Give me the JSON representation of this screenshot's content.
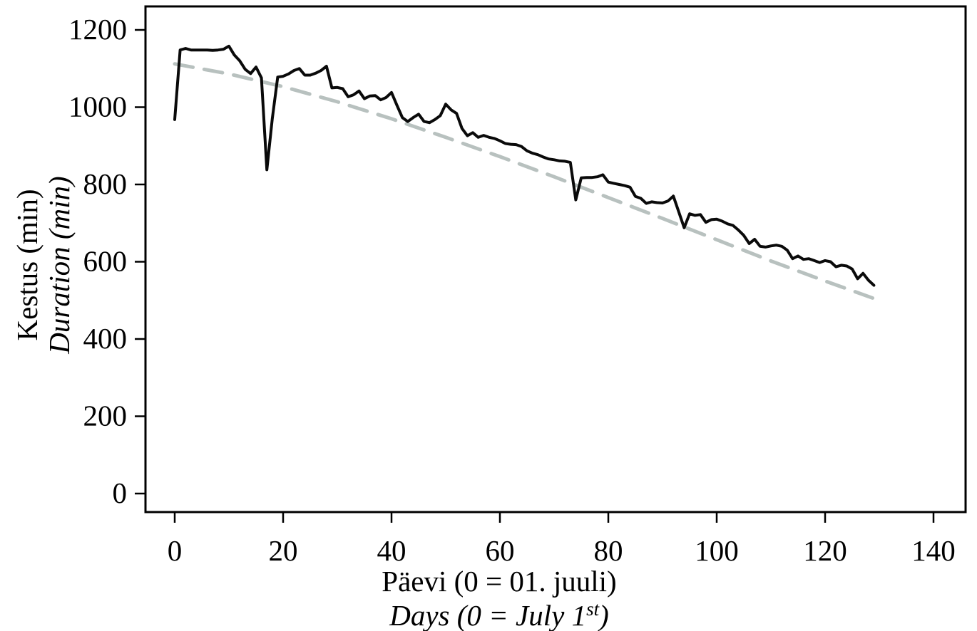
{
  "figure": {
    "background": "#ffffff",
    "border_color": "#000000"
  },
  "chart_data": {
    "type": "line",
    "title": "",
    "grid": false,
    "legend": "none",
    "x_axis": {
      "label_line1": "Päevi (0 = 01. juuli)",
      "label_line2_pre": "Days (0 = July 1",
      "label_line2_sup": "st",
      "label_line2_post": ")",
      "ticks": [
        0,
        20,
        40,
        60,
        80,
        100,
        120,
        140
      ],
      "range": [
        -5.4,
        146
      ]
    },
    "y_axis": {
      "label_line1": "Kestus (min)",
      "label_line2": "Duration (min)",
      "ticks": [
        0,
        200,
        400,
        600,
        800,
        1000,
        1200
      ],
      "range": [
        -48,
        1261
      ]
    },
    "series": [
      {
        "name": "observed-daylight-duration",
        "style": "solid",
        "color": "#0a0a0a",
        "x_start": 0,
        "x_step": 1,
        "values": [
          968,
          1148,
          1152,
          1148,
          1148,
          1148,
          1148,
          1147,
          1148,
          1150,
          1158,
          1135,
          1120,
          1098,
          1087,
          1104,
          1076,
          838,
          970,
          1078,
          1080,
          1086,
          1095,
          1100,
          1083,
          1083,
          1088,
          1095,
          1106,
          1050,
          1051,
          1048,
          1027,
          1032,
          1042,
          1022,
          1029,
          1030,
          1019,
          1025,
          1038,
          1005,
          973,
          963,
          973,
          982,
          963,
          960,
          968,
          978,
          1008,
          993,
          984,
          945,
          926,
          934,
          922,
          927,
          922,
          919,
          913,
          906,
          904,
          903,
          898,
          887,
          881,
          877,
          871,
          866,
          864,
          861,
          860,
          857,
          760,
          817,
          818,
          818,
          820,
          825,
          806,
          803,
          800,
          797,
          793,
          769,
          764,
          751,
          755,
          753,
          752,
          757,
          770,
          729,
          688,
          724,
          720,
          722,
          702,
          709,
          710,
          705,
          698,
          694,
          682,
          668,
          647,
          658,
          640,
          638,
          641,
          643,
          640,
          630,
          608,
          615,
          606,
          608,
          603,
          598,
          603,
          600,
          587,
          591,
          589,
          581,
          556,
          570,
          552,
          539
        ]
      },
      {
        "name": "fitted-trend",
        "style": "dashed",
        "color": "#b8c1bf",
        "x": [
          0,
          10,
          20,
          30,
          40,
          50,
          60,
          70,
          80,
          90,
          100,
          110,
          120,
          130
        ],
        "values": [
          1112,
          1086,
          1053,
          1014,
          970,
          922,
          872,
          820,
          766,
          712,
          657,
          602,
          550,
          500
        ]
      }
    ]
  }
}
